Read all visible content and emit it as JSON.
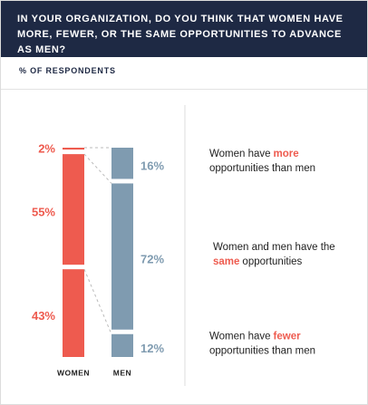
{
  "chart_data": {
    "type": "stacked-bar",
    "title": "IN YOUR ORGANIZATION, DO YOU THINK THAT WOMEN HAVE MORE, FEWER, OR THE SAME OPPORTUNITIES TO ADVANCE AS MEN?",
    "subtitle": "% OF RESPONDENTS",
    "categories": [
      "WOMEN",
      "MEN"
    ],
    "colors": [
      "#ee5b4f",
      "#7f9bb0"
    ],
    "highlight_color": "#ee5b4f",
    "series": [
      {
        "name": [
          "Women have",
          "more",
          "opportunities than men"
        ],
        "values": [
          2,
          16
        ],
        "value_labels": [
          "2%",
          "16%"
        ]
      },
      {
        "name": [
          "Women and men have the",
          "same",
          "opportunities"
        ],
        "values": [
          55,
          72
        ],
        "value_labels": [
          "55%",
          "72%"
        ]
      },
      {
        "name": [
          "Women have",
          "fewer",
          "opportunities than men"
        ],
        "values": [
          43,
          12
        ],
        "value_labels": [
          "43%",
          "12%"
        ]
      }
    ]
  }
}
